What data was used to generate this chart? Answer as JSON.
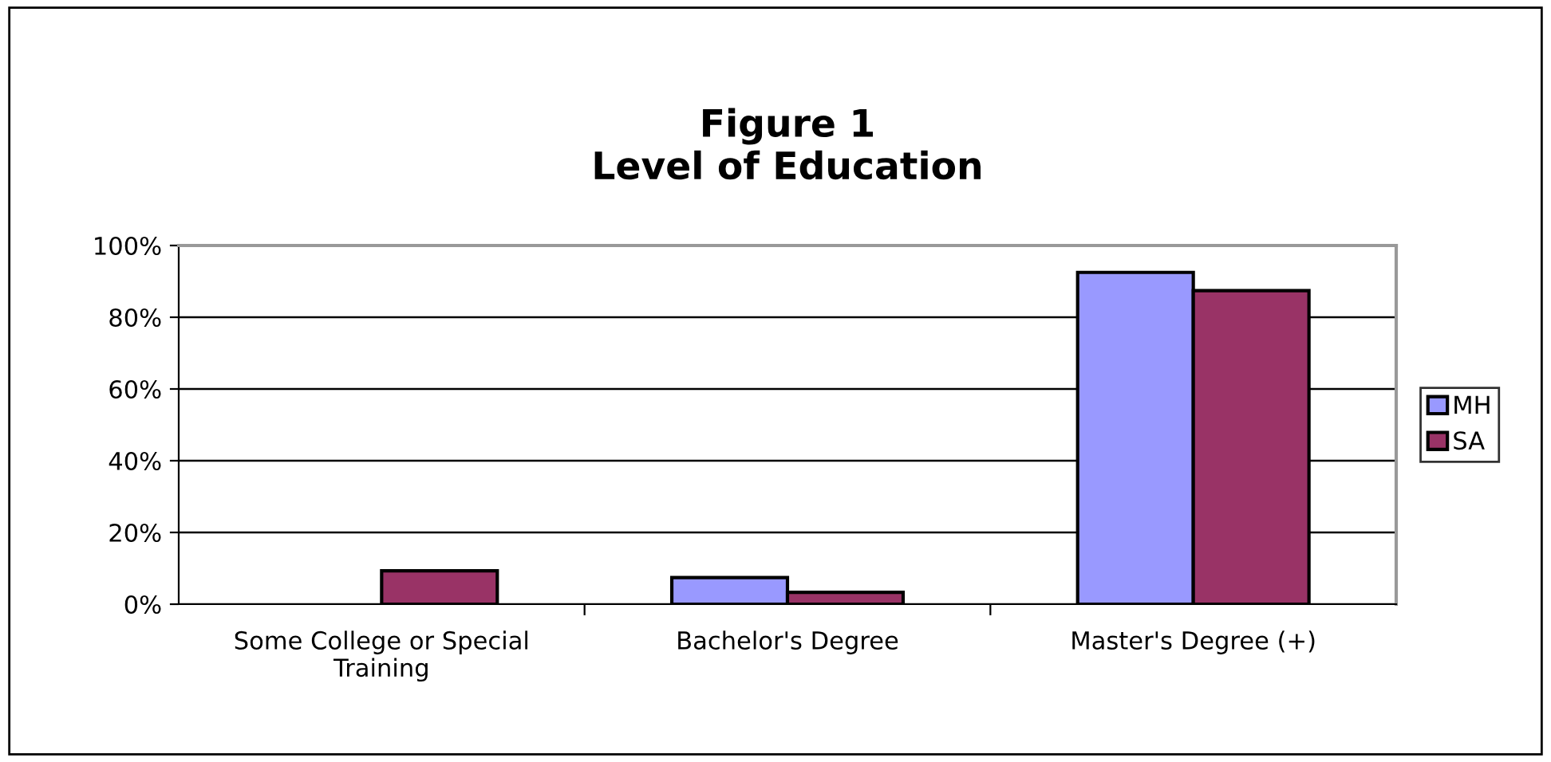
{
  "chart_data": {
    "type": "bar",
    "title": "Figure 1\nLevel of Education",
    "categories": [
      "Some College or Special\nTraining",
      "Bachelor's Degree",
      "Master's Degree (+)"
    ],
    "series": [
      {
        "name": "MH",
        "color": "#9999ff",
        "values": [
          null,
          7.4,
          92.5
        ]
      },
      {
        "name": "SA",
        "color": "#993366",
        "values": [
          9.3,
          3.3,
          87.4
        ]
      }
    ],
    "ylim": [
      0,
      100
    ],
    "yticks": [
      {
        "value": 0,
        "label": "0%"
      },
      {
        "value": 20,
        "label": "20%"
      },
      {
        "value": 40,
        "label": "40%"
      },
      {
        "value": 60,
        "label": "60%"
      },
      {
        "value": 80,
        "label": "80%"
      },
      {
        "value": 100,
        "label": "100%"
      }
    ],
    "grid": "y",
    "legend": "right"
  }
}
